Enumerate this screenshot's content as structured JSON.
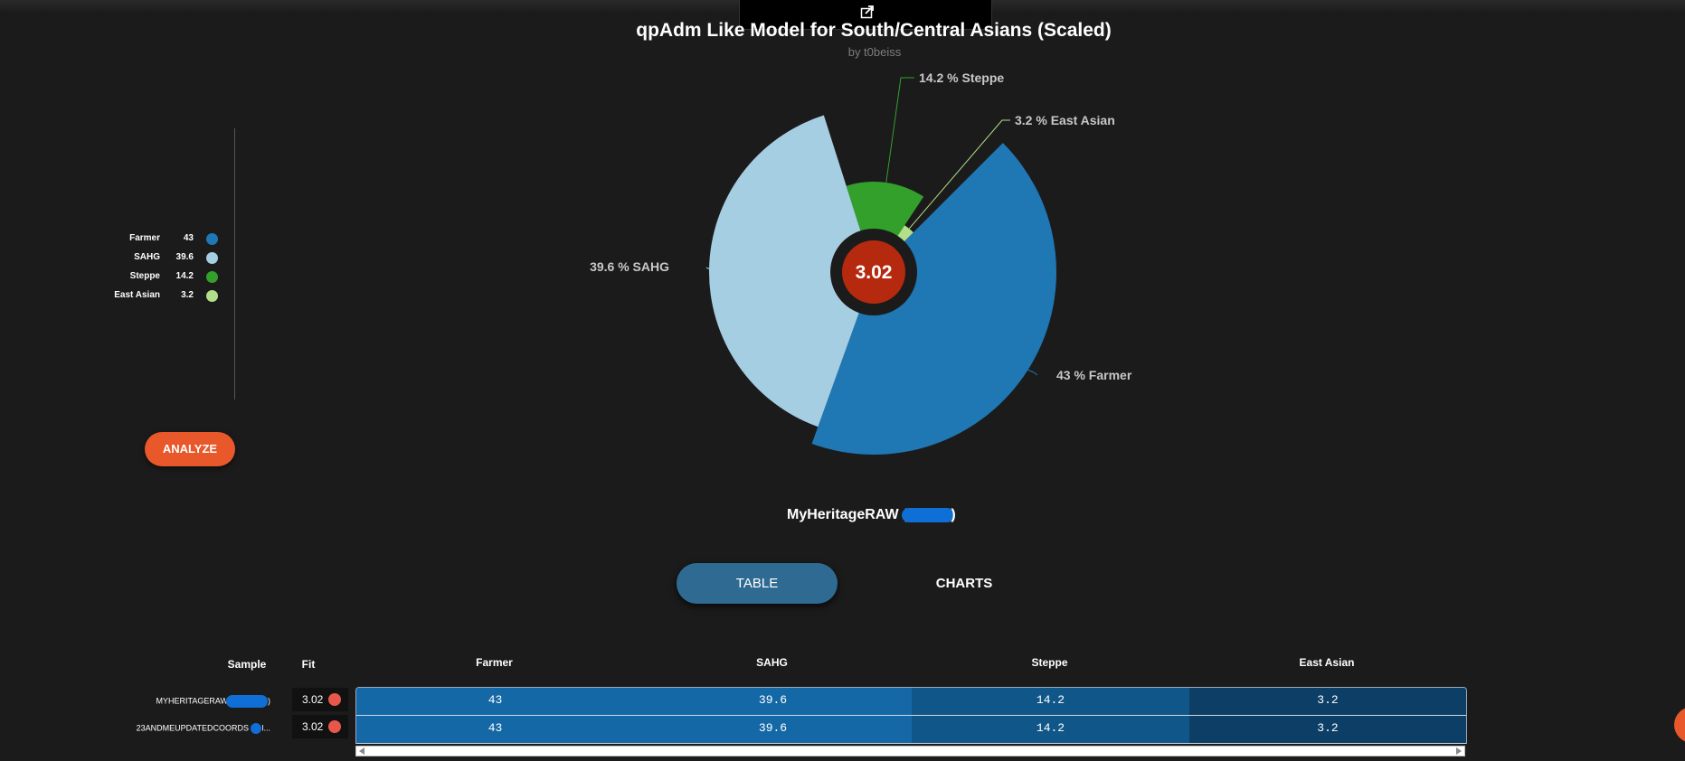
{
  "header": {
    "title": "qpAdm Like Model for South/Central Asians (Scaled)",
    "subtitle": "by t0beiss"
  },
  "legend": [
    {
      "name": "Farmer",
      "value": "43",
      "color": "#1f77b4"
    },
    {
      "name": "SAHG",
      "value": "39.6",
      "color": "#a6cee3"
    },
    {
      "name": "Steppe",
      "value": "14.2",
      "color": "#33a02c"
    },
    {
      "name": "East Asian",
      "value": "3.2",
      "color": "#b2df8a"
    }
  ],
  "analyze_label": "ANALYZE",
  "sample": {
    "name_prefix": "MyHeritageRAW (",
    "name_suffix": ")"
  },
  "tabs": {
    "table": "TABLE",
    "charts": "CHARTS"
  },
  "table": {
    "headers": {
      "sample": "Sample",
      "fit": "Fit",
      "farmer": "Farmer",
      "sahg": "SAHG",
      "steppe": "Steppe",
      "east_asian": "East Asian"
    },
    "rows": [
      {
        "sample": "MYHERITAGERAW",
        "fit": "3.02",
        "farmer": "43",
        "sahg": "39.6",
        "steppe": "14.2",
        "east_asian": "3.2"
      },
      {
        "sample": "23ANDMEUPDATEDCOORDS",
        "fit": "3.02",
        "farmer": "43",
        "sahg": "39.6",
        "steppe": "14.2",
        "east_asian": "3.2"
      }
    ]
  },
  "chart_data": {
    "type": "pie",
    "title": "qpAdm Like Model for South/Central Asians (Scaled)",
    "subtitle": "by t0beiss",
    "center_value": "3.02",
    "slices": [
      {
        "name": "Farmer",
        "value": 43,
        "label": "43 %  Farmer",
        "color": "#1f77b4"
      },
      {
        "name": "SAHG",
        "value": 39.6,
        "label": "39.6 %  SAHG",
        "color": "#a6cee3"
      },
      {
        "name": "Steppe",
        "value": 14.2,
        "label": "14.2 %  Steppe",
        "color": "#33a02c"
      },
      {
        "name": "East Asian",
        "value": 3.2,
        "label": "3.2 %  East Asian",
        "color": "#b2df8a"
      }
    ]
  },
  "colors": {
    "accent": "#e8582a",
    "center_circle": "#b5290e",
    "table_dark": "#0d3f66",
    "table_mid": "#115689",
    "table_light": "#1568a6"
  }
}
